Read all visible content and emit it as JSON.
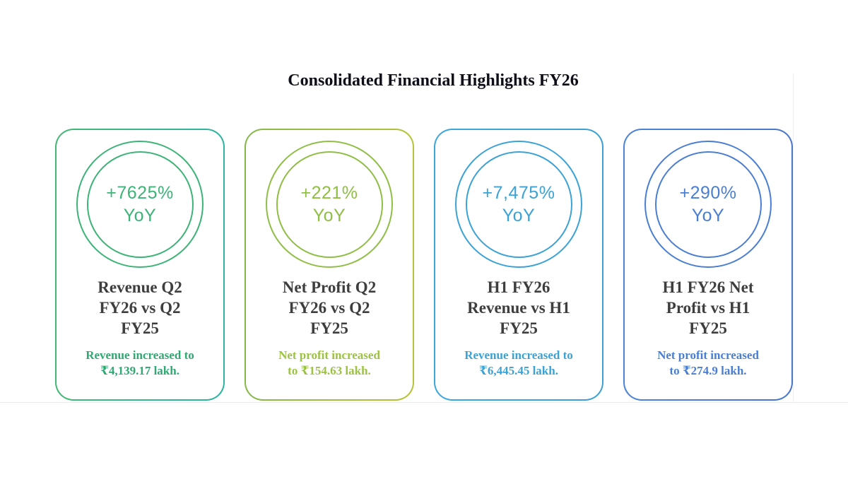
{
  "page": {
    "title": "Consolidated Financial Highlights FY26",
    "background": "#ffffff",
    "title_color": "#0e0e18",
    "card_title_color": "#3e3e3e"
  },
  "cards": [
    {
      "id": "revenue-q2",
      "growth": "+7625%",
      "growth_suffix": "YoY",
      "title": "Revenue Q2\nFY26 vs Q2\nFY25",
      "note": "Revenue increased to\n₹4,139.17 lakh.",
      "colors": {
        "accent": "#3cb377",
        "note": "#2fa871",
        "border_from": "#42b873",
        "border_to": "#2eb3a0"
      }
    },
    {
      "id": "net-profit-q2",
      "growth": "+221%",
      "growth_suffix": "YoY",
      "title": "Net Profit Q2\nFY26 vs Q2\nFY25",
      "note": "Net profit increased\nto ₹154.63 lakh.",
      "colors": {
        "accent": "#8fbe45",
        "note": "#9cc243",
        "border_from": "#85b947",
        "border_to": "#b5c23a"
      }
    },
    {
      "id": "h1-revenue",
      "growth": "+7,475%",
      "growth_suffix": "YoY",
      "title": "H1 FY26\nRevenue vs H1\nFY25",
      "note": "Revenue increased to\n₹6,445.45 lakh.",
      "colors": {
        "accent": "#3ba2d6",
        "note": "#3ba2d6",
        "border_from": "#39a8dc",
        "border_to": "#3f9fd0"
      }
    },
    {
      "id": "h1-net-profit",
      "growth": "+290%",
      "growth_suffix": "YoY",
      "title": "H1 FY26 Net\nProfit vs H1\nFY25",
      "note": "Net profit increased\nto ₹274.9 lakh.",
      "colors": {
        "accent": "#4a7ed3",
        "note": "#4a7ed3",
        "border_from": "#4b83d8",
        "border_to": "#4a76c8"
      }
    }
  ]
}
